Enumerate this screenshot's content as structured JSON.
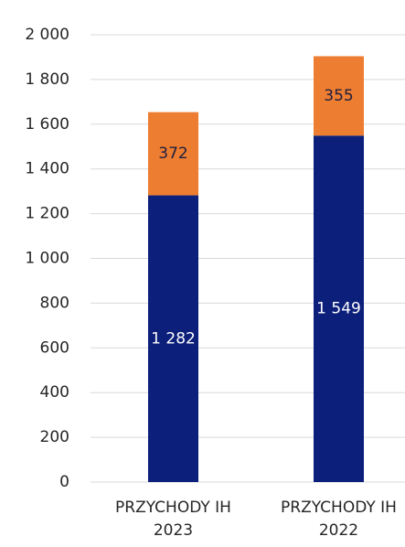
{
  "chart_data": {
    "type": "stacked_bar",
    "categories": [
      "PRZYCHODY IH 2023",
      "PRZYCHODY IH 2022"
    ],
    "series": [
      {
        "color": "#0c1f7a",
        "values": [
          1282,
          1549
        ],
        "value_labels": [
          "1 282",
          "1 549"
        ],
        "label_color": "#ffffff"
      },
      {
        "color": "#ed7d31",
        "values": [
          372,
          355
        ],
        "label_color": "#1f1f3f"
      }
    ],
    "ylim": [
      0,
      2000
    ],
    "yticks": [
      0,
      200,
      400,
      600,
      800,
      {
        "value": 1000,
        "label": "1 000"
      },
      {
        "value": 1200,
        "label": "1 200"
      },
      {
        "value": 1400,
        "label": "1 400"
      },
      {
        "value": 1600,
        "label": "1 600"
      },
      {
        "value": 1800,
        "label": "1 800"
      },
      {
        "value": 2000,
        "label": "2 000"
      }
    ],
    "grid": true
  }
}
